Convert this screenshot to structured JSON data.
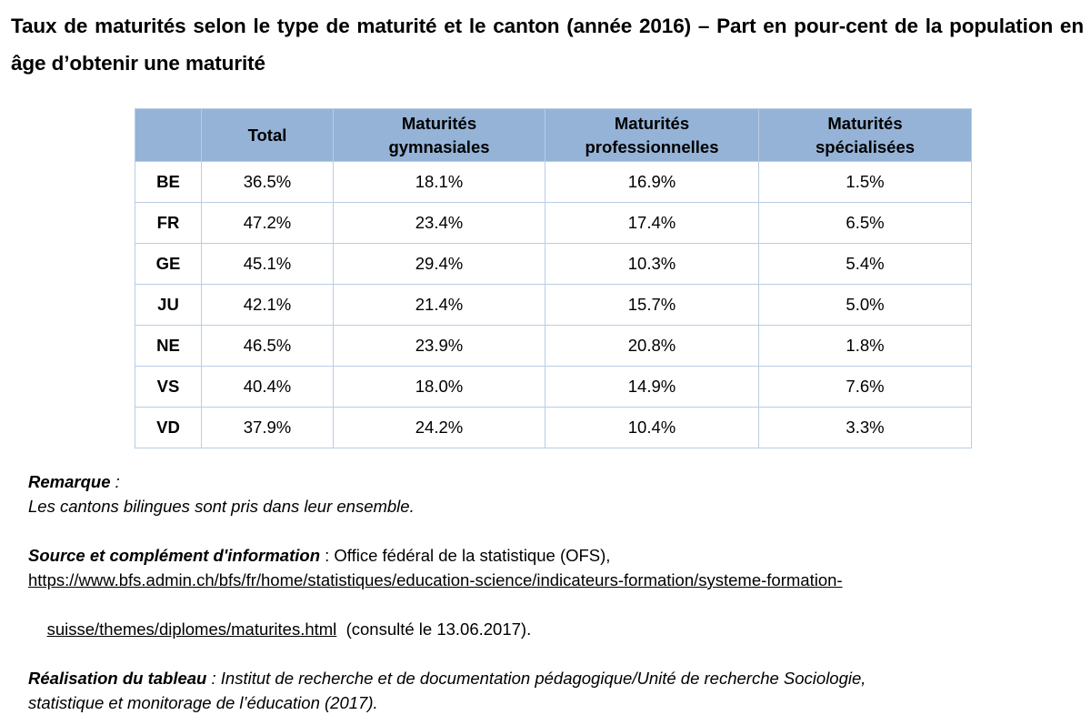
{
  "title": "Taux de maturités selon le type de maturité et le canton (année 2016) – Part en pour-cent de la population en âge d’obtenir une maturité",
  "table": {
    "headers": [
      "",
      "Total",
      "Maturités gymnasiales",
      "Maturités professionnelles",
      "Maturités spécialisées"
    ],
    "rows": [
      {
        "canton": "BE",
        "total": "36.5%",
        "gymnasiales": "18.1%",
        "professionnelles": "16.9%",
        "specialisees": "1.5%"
      },
      {
        "canton": "FR",
        "total": "47.2%",
        "gymnasiales": "23.4%",
        "professionnelles": "17.4%",
        "specialisees": "6.5%"
      },
      {
        "canton": "GE",
        "total": "45.1%",
        "gymnasiales": "29.4%",
        "professionnelles": "10.3%",
        "specialisees": "5.4%"
      },
      {
        "canton": "JU",
        "total": "42.1%",
        "gymnasiales": "21.4%",
        "professionnelles": "15.7%",
        "specialisees": "5.0%"
      },
      {
        "canton": "NE",
        "total": "46.5%",
        "gymnasiales": "23.9%",
        "professionnelles": "20.8%",
        "specialisees": "1.8%"
      },
      {
        "canton": "VS",
        "total": "40.4%",
        "gymnasiales": "18.0%",
        "professionnelles": "14.9%",
        "specialisees": "7.6%"
      },
      {
        "canton": "VD",
        "total": "37.9%",
        "gymnasiales": "24.2%",
        "professionnelles": "10.4%",
        "specialisees": "3.3%"
      }
    ]
  },
  "notes": {
    "remarque_label": "Remarque",
    "remarque_sep": " :",
    "remarque_text": "Les cantons bilingues sont pris dans leur ensemble.",
    "source_label": "Source et complément d'information",
    "source_text": " : Office fédéral de la statistique (OFS),",
    "source_url_line1": "https://www.bfs.admin.ch/bfs/fr/home/statistiques/education-science/indicateurs-formation/systeme-formation-",
    "source_url_line2": "suisse/themes/diplomes/maturites.html",
    "source_consulted": "  (consulté le 13.06.2017).",
    "realisation_label": "Réalisation du tableau",
    "realisation_text_line1": " : Institut de recherche et de documentation pédagogique/Unité de recherche Sociologie,",
    "realisation_text_line2": "statistique et monitorage de l’éducation (2017)."
  }
}
